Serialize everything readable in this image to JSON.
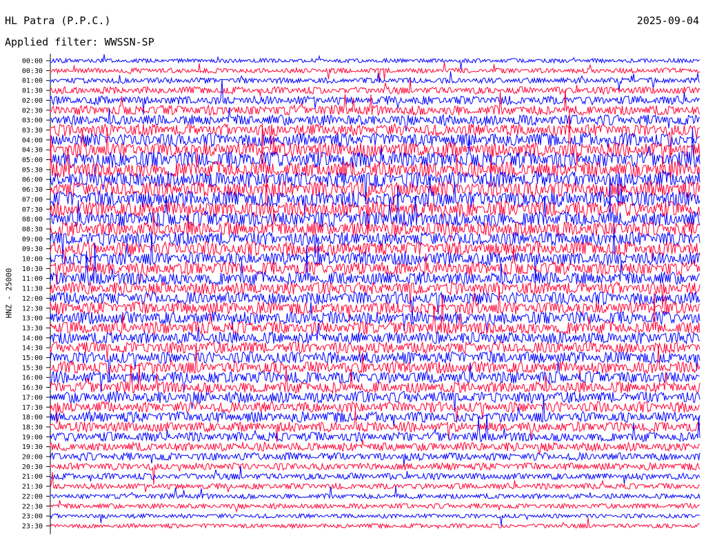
{
  "header": {
    "station": "HL Patra (P.P.C.)",
    "date": "2025-09-04",
    "filter": "Applied filter: WWSSN-SP"
  },
  "chart_data": {
    "type": "line",
    "title": "HL Patra (P.P.C.)",
    "subtitle": "Applied filter: WWSSN-SP",
    "ylabel": "HNZ - 25000",
    "xlabel": "",
    "categories": [
      "00:00",
      "00:30",
      "01:00",
      "01:30",
      "02:00",
      "02:30",
      "03:00",
      "03:30",
      "04:00",
      "04:30",
      "05:00",
      "05:30",
      "06:00",
      "06:30",
      "07:00",
      "07:30",
      "08:00",
      "08:30",
      "09:00",
      "09:30",
      "10:00",
      "10:30",
      "11:00",
      "11:30",
      "12:00",
      "12:30",
      "13:00",
      "13:30",
      "14:00",
      "14:30",
      "15:00",
      "15:30",
      "16:00",
      "16:30",
      "17:00",
      "17:30",
      "18:00",
      "18:30",
      "19:00",
      "19:30",
      "20:00",
      "20:30",
      "21:00",
      "21:30",
      "22:00",
      "22:30",
      "23:00",
      "23:30"
    ],
    "relative_noise_level": [
      0.15,
      0.2,
      0.25,
      0.35,
      0.45,
      0.55,
      0.6,
      0.7,
      0.8,
      0.9,
      1.0,
      1.0,
      1.0,
      1.0,
      1.0,
      0.95,
      0.95,
      0.9,
      0.85,
      0.85,
      0.8,
      0.8,
      0.8,
      0.75,
      0.75,
      0.75,
      0.75,
      0.75,
      0.7,
      0.7,
      0.7,
      0.7,
      0.7,
      0.65,
      0.65,
      0.6,
      0.6,
      0.55,
      0.5,
      0.45,
      0.4,
      0.35,
      0.3,
      0.25,
      0.2,
      0.2,
      0.15,
      0.15
    ],
    "colors": {
      "even_rows": "#0000ff",
      "odd_rows": "#ff0033",
      "baseline": "#000000"
    },
    "grid": false
  }
}
